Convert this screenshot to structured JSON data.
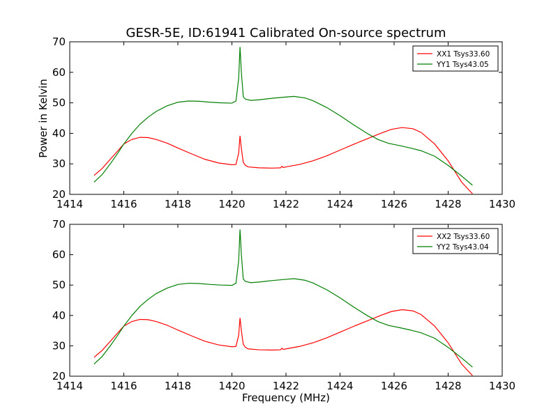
{
  "chart_data": {
    "type": "line",
    "title": "GESR-5E, ID:61941 Calibrated On-source spectrum",
    "xlabel": "Frequency (MHz)",
    "ylabel": "Power in Kelvin",
    "xlim": [
      1414,
      1430
    ],
    "x_ticks": [
      1414,
      1416,
      1418,
      1420,
      1422,
      1424,
      1426,
      1428,
      1430
    ],
    "ylim": [
      20,
      70
    ],
    "y_ticks": [
      20,
      30,
      40,
      50,
      60,
      70
    ],
    "grid": false,
    "legend_position": "top-right",
    "panels": [
      {
        "series": [
          {
            "name": "XX1 Tsys33.60",
            "color": "#ff0000",
            "points": [
              [
                1414.9,
                26.2
              ],
              [
                1415.2,
                28.5
              ],
              [
                1415.5,
                31.5
              ],
              [
                1415.8,
                34.5
              ],
              [
                1416.0,
                36.5
              ],
              [
                1416.3,
                38.0
              ],
              [
                1416.6,
                38.7
              ],
              [
                1416.9,
                38.6
              ],
              [
                1417.2,
                38.0
              ],
              [
                1417.6,
                36.8
              ],
              [
                1418.0,
                35.2
              ],
              [
                1418.5,
                33.3
              ],
              [
                1419.0,
                31.5
              ],
              [
                1419.5,
                30.3
              ],
              [
                1420.0,
                29.7
              ],
              [
                1420.15,
                29.8
              ],
              [
                1420.25,
                33.5
              ],
              [
                1420.3,
                39.2
              ],
              [
                1420.35,
                35.0
              ],
              [
                1420.42,
                30.5
              ],
              [
                1420.5,
                29.5
              ],
              [
                1420.6,
                29.0
              ],
              [
                1421.0,
                28.7
              ],
              [
                1421.5,
                28.6
              ],
              [
                1421.8,
                28.7
              ],
              [
                1421.85,
                29.2
              ],
              [
                1421.9,
                28.8
              ],
              [
                1422.0,
                29.0
              ],
              [
                1422.5,
                29.8
              ],
              [
                1423.0,
                31.0
              ],
              [
                1423.5,
                32.6
              ],
              [
                1424.0,
                34.5
              ],
              [
                1424.5,
                36.4
              ],
              [
                1425.0,
                38.2
              ],
              [
                1425.5,
                40.0
              ],
              [
                1425.9,
                41.3
              ],
              [
                1426.3,
                41.9
              ],
              [
                1426.7,
                41.5
              ],
              [
                1427.0,
                40.3
              ],
              [
                1427.5,
                36.5
              ],
              [
                1428.0,
                31.0
              ],
              [
                1428.5,
                24.0
              ],
              [
                1428.9,
                20.2
              ]
            ]
          },
          {
            "name": "YY1 Tsys43.05",
            "color": "#007f00",
            "points": [
              [
                1414.9,
                24.0
              ],
              [
                1415.2,
                26.5
              ],
              [
                1415.5,
                30.0
              ],
              [
                1415.8,
                33.8
              ],
              [
                1416.0,
                36.5
              ],
              [
                1416.3,
                40.0
              ],
              [
                1416.6,
                43.0
              ],
              [
                1416.9,
                45.3
              ],
              [
                1417.2,
                47.2
              ],
              [
                1417.6,
                49.0
              ],
              [
                1418.0,
                50.2
              ],
              [
                1418.4,
                50.6
              ],
              [
                1418.8,
                50.5
              ],
              [
                1419.2,
                50.2
              ],
              [
                1419.6,
                50.0
              ],
              [
                1420.0,
                49.9
              ],
              [
                1420.15,
                50.6
              ],
              [
                1420.25,
                58.0
              ],
              [
                1420.3,
                68.3
              ],
              [
                1420.35,
                60.0
              ],
              [
                1420.42,
                52.0
              ],
              [
                1420.5,
                51.2
              ],
              [
                1420.7,
                50.8
              ],
              [
                1421.0,
                51.0
              ],
              [
                1421.5,
                51.5
              ],
              [
                1422.0,
                51.9
              ],
              [
                1422.3,
                52.1
              ],
              [
                1422.7,
                51.6
              ],
              [
                1423.0,
                50.7
              ],
              [
                1423.5,
                48.5
              ],
              [
                1424.0,
                45.8
              ],
              [
                1424.5,
                42.8
              ],
              [
                1425.0,
                40.0
              ],
              [
                1425.4,
                38.0
              ],
              [
                1425.8,
                36.7
              ],
              [
                1426.2,
                36.0
              ],
              [
                1426.6,
                35.2
              ],
              [
                1427.0,
                34.3
              ],
              [
                1427.5,
                32.5
              ],
              [
                1428.0,
                29.5
              ],
              [
                1428.5,
                26.0
              ],
              [
                1428.9,
                23.0
              ]
            ]
          }
        ]
      },
      {
        "series": [
          {
            "name": "XX2 Tsys33.60",
            "color": "#ff0000",
            "points": [
              [
                1414.9,
                26.2
              ],
              [
                1415.2,
                28.5
              ],
              [
                1415.5,
                31.5
              ],
              [
                1415.8,
                34.5
              ],
              [
                1416.0,
                36.5
              ],
              [
                1416.3,
                38.0
              ],
              [
                1416.6,
                38.7
              ],
              [
                1416.9,
                38.6
              ],
              [
                1417.2,
                38.0
              ],
              [
                1417.6,
                36.8
              ],
              [
                1418.0,
                35.2
              ],
              [
                1418.5,
                33.3
              ],
              [
                1419.0,
                31.5
              ],
              [
                1419.5,
                30.3
              ],
              [
                1420.0,
                29.7
              ],
              [
                1420.15,
                29.8
              ],
              [
                1420.25,
                33.5
              ],
              [
                1420.3,
                39.2
              ],
              [
                1420.35,
                35.0
              ],
              [
                1420.42,
                30.5
              ],
              [
                1420.5,
                29.5
              ],
              [
                1420.6,
                29.0
              ],
              [
                1421.0,
                28.7
              ],
              [
                1421.5,
                28.6
              ],
              [
                1421.8,
                28.7
              ],
              [
                1421.85,
                29.2
              ],
              [
                1421.9,
                28.8
              ],
              [
                1422.0,
                29.0
              ],
              [
                1422.5,
                29.8
              ],
              [
                1423.0,
                31.0
              ],
              [
                1423.5,
                32.6
              ],
              [
                1424.0,
                34.5
              ],
              [
                1424.5,
                36.4
              ],
              [
                1425.0,
                38.2
              ],
              [
                1425.5,
                40.0
              ],
              [
                1425.9,
                41.3
              ],
              [
                1426.3,
                41.9
              ],
              [
                1426.7,
                41.5
              ],
              [
                1427.0,
                40.3
              ],
              [
                1427.5,
                36.5
              ],
              [
                1428.0,
                31.0
              ],
              [
                1428.5,
                24.0
              ],
              [
                1428.9,
                20.2
              ]
            ]
          },
          {
            "name": "YY2 Tsys43.04",
            "color": "#007f00",
            "points": [
              [
                1414.9,
                24.0
              ],
              [
                1415.2,
                26.5
              ],
              [
                1415.5,
                30.0
              ],
              [
                1415.8,
                33.8
              ],
              [
                1416.0,
                36.5
              ],
              [
                1416.3,
                40.0
              ],
              [
                1416.6,
                43.0
              ],
              [
                1416.9,
                45.3
              ],
              [
                1417.2,
                47.2
              ],
              [
                1417.6,
                49.0
              ],
              [
                1418.0,
                50.2
              ],
              [
                1418.4,
                50.6
              ],
              [
                1418.8,
                50.5
              ],
              [
                1419.2,
                50.2
              ],
              [
                1419.6,
                50.0
              ],
              [
                1420.0,
                49.9
              ],
              [
                1420.15,
                50.6
              ],
              [
                1420.25,
                58.0
              ],
              [
                1420.3,
                68.3
              ],
              [
                1420.35,
                60.0
              ],
              [
                1420.42,
                52.0
              ],
              [
                1420.5,
                51.2
              ],
              [
                1420.7,
                50.8
              ],
              [
                1421.0,
                51.0
              ],
              [
                1421.5,
                51.5
              ],
              [
                1422.0,
                51.9
              ],
              [
                1422.3,
                52.1
              ],
              [
                1422.7,
                51.6
              ],
              [
                1423.0,
                50.7
              ],
              [
                1423.5,
                48.5
              ],
              [
                1424.0,
                45.8
              ],
              [
                1424.5,
                42.8
              ],
              [
                1425.0,
                40.0
              ],
              [
                1425.4,
                38.0
              ],
              [
                1425.8,
                36.7
              ],
              [
                1426.2,
                36.0
              ],
              [
                1426.6,
                35.2
              ],
              [
                1427.0,
                34.3
              ],
              [
                1427.5,
                32.5
              ],
              [
                1428.0,
                29.5
              ],
              [
                1428.5,
                26.0
              ],
              [
                1428.9,
                23.0
              ]
            ]
          }
        ]
      }
    ]
  }
}
